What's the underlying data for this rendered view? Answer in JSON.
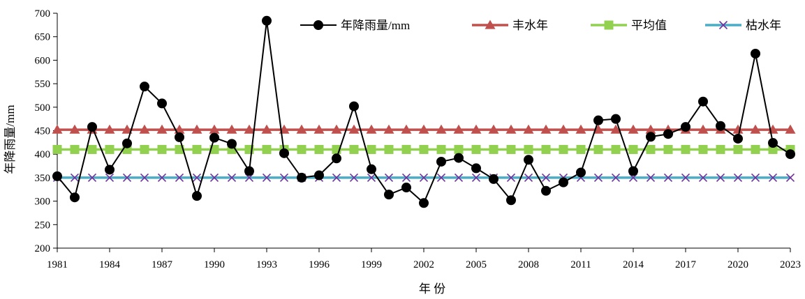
{
  "chart_data": {
    "type": "line",
    "ylabel": "年降雨量/mm",
    "xlabel": "年 份",
    "ylim": [
      200,
      700
    ],
    "yticks": [
      200,
      250,
      300,
      350,
      400,
      450,
      500,
      550,
      600,
      650,
      700
    ],
    "xlim": [
      1981,
      2023
    ],
    "xticks": [
      1981,
      1984,
      1987,
      1990,
      1993,
      1996,
      1999,
      2002,
      2005,
      2008,
      2011,
      2014,
      2017,
      2020,
      2023
    ],
    "x": [
      1981,
      1982,
      1983,
      1984,
      1985,
      1986,
      1987,
      1988,
      1989,
      1990,
      1991,
      1992,
      1993,
      1994,
      1995,
      1996,
      1997,
      1998,
      1999,
      2000,
      2001,
      2002,
      2003,
      2004,
      2005,
      2006,
      2007,
      2008,
      2009,
      2010,
      2011,
      2012,
      2013,
      2014,
      2015,
      2016,
      2017,
      2018,
      2019,
      2020,
      2021,
      2022,
      2023
    ],
    "grid": false,
    "legend_position": "top",
    "series": [
      {
        "name": "年降雨量/mm",
        "color": "#000000",
        "marker": "circle",
        "values": [
          353,
          308,
          458,
          367,
          423,
          544,
          508,
          436,
          311,
          435,
          422,
          364,
          684,
          402,
          350,
          355,
          391,
          502,
          368,
          314,
          329,
          296,
          384,
          392,
          370,
          347,
          302,
          388,
          322,
          340,
          361,
          472,
          475,
          364,
          437,
          443,
          458,
          512,
          460,
          433,
          614,
          424,
          400
        ]
      },
      {
        "name": "丰水年",
        "color": "#c0504d",
        "marker": "triangle",
        "constant": 452
      },
      {
        "name": "平均值",
        "color": "#92d050",
        "marker": "square",
        "constant": 410
      },
      {
        "name": "枯水年",
        "color": "#4bacc6",
        "marker": "x",
        "marker_color": "#7030a0",
        "constant": 350
      }
    ]
  }
}
